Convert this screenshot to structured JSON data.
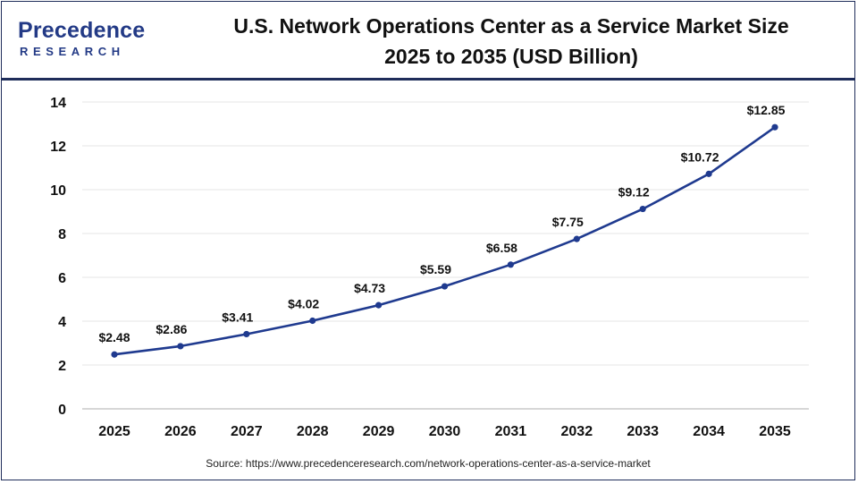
{
  "logo": {
    "main": "Precedence",
    "sub": "RESEARCH"
  },
  "header": {
    "title_line1": "U.S. Network Operations Center as a Service Market Size",
    "title_line2": "2025 to 2035 (USD Billion)"
  },
  "source": "Source: https://www.precedenceresearch.com/network-operations-center-as-a-service-market",
  "colors": {
    "line": "#1f3a8f",
    "brand": "#233a86",
    "grid": "#e6e6e6"
  },
  "chart_data": {
    "type": "line",
    "title": "U.S. Network Operations Center as a Service Market Size 2025 to 2035 (USD Billion)",
    "x": [
      "2025",
      "2026",
      "2027",
      "2028",
      "2029",
      "2030",
      "2031",
      "2032",
      "2033",
      "2034",
      "2035"
    ],
    "series": [
      {
        "values": [
          2.48,
          2.86,
          3.41,
          4.02,
          4.73,
          5.59,
          6.58,
          7.75,
          9.12,
          10.72,
          12.85
        ]
      }
    ],
    "data_labels": [
      "$2.48",
      "$2.86",
      "$3.41",
      "$4.02",
      "$4.73",
      "$5.59",
      "$6.58",
      "$7.75",
      "$9.12",
      "$10.72",
      "$12.85"
    ],
    "yticks": [
      0,
      2,
      4,
      6,
      8,
      10,
      12,
      14
    ],
    "ylim": [
      0,
      14
    ],
    "grid": true,
    "legend": "none"
  }
}
